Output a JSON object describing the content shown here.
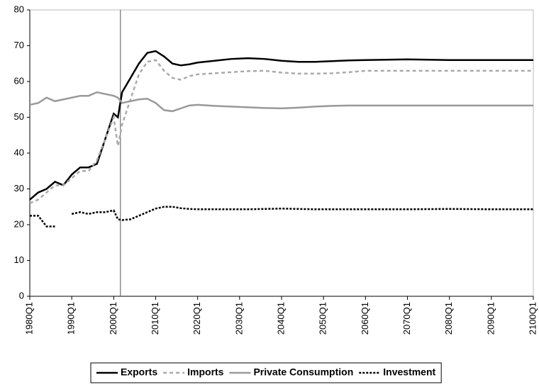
{
  "chart_data": {
    "type": "line",
    "x": [
      1980,
      1982,
      1984,
      1986,
      1988,
      1990,
      1992,
      1994,
      1996,
      1998,
      2000,
      2001,
      2002,
      2004,
      2006,
      2008,
      2010,
      2012,
      2014,
      2016,
      2018,
      2020,
      2024,
      2028,
      2032,
      2036,
      2040,
      2044,
      2048,
      2052,
      2056,
      2060,
      2070,
      2080,
      2090,
      2100
    ],
    "series": [
      {
        "name": "Exports",
        "color": "#000000",
        "dash": "solid",
        "values": [
          27,
          29,
          30,
          32,
          31,
          34,
          36,
          36,
          37,
          44,
          51,
          50,
          57,
          61,
          65,
          68,
          68.5,
          67,
          65,
          64.5,
          64.8,
          65.3,
          65.8,
          66.3,
          66.5,
          66.3,
          65.8,
          65.5,
          65.5,
          65.7,
          65.9,
          66,
          66.2,
          66,
          66,
          66
        ]
      },
      {
        "name": "Imports",
        "color": "#aaaaaa",
        "dash": "dashed",
        "values": [
          26,
          27,
          29,
          31,
          31,
          33,
          35,
          35,
          38,
          44,
          50,
          42,
          48,
          55,
          62,
          65.5,
          66,
          63,
          61,
          60.5,
          61.5,
          62,
          62.3,
          62.6,
          62.9,
          63,
          62.5,
          62.2,
          62.2,
          62.3,
          62.6,
          63,
          63,
          63,
          63,
          63
        ]
      },
      {
        "name": "Private Consumption",
        "color": "#999999",
        "dash": "solid",
        "values": [
          53.5,
          54,
          55.5,
          54.5,
          55,
          55.5,
          56,
          56,
          57,
          56.5,
          56,
          55.5,
          54,
          54.5,
          55,
          55.2,
          54,
          52,
          51.7,
          52.5,
          53.3,
          53.5,
          53.2,
          53,
          52.8,
          52.6,
          52.5,
          52.7,
          53,
          53.2,
          53.3,
          53.3,
          53.3,
          53.3,
          53.3,
          53.3
        ]
      },
      {
        "name": "Investment",
        "color": "#000000",
        "dash": "dotted",
        "values": [
          22.5,
          22.5,
          19.5,
          19.5,
          null,
          23,
          23.5,
          23,
          23.5,
          23.5,
          24,
          21.5,
          21.3,
          21.5,
          22.5,
          23.5,
          24.5,
          25,
          25,
          24.6,
          24.4,
          24.3,
          24.3,
          24.3,
          24.3,
          24.4,
          24.5,
          24.4,
          24.3,
          24.3,
          24.3,
          24.3,
          24.3,
          24.4,
          24.3,
          24.3
        ]
      }
    ],
    "xlim": [
      1980,
      2100
    ],
    "xticks": [
      {
        "value": 1980,
        "label": "1980Q1"
      },
      {
        "value": 1990,
        "label": "1990Q1"
      },
      {
        "value": 2000,
        "label": "2000Q1"
      },
      {
        "value": 2010,
        "label": "2010Q1"
      },
      {
        "value": 2020,
        "label": "2020Q1"
      },
      {
        "value": 2030,
        "label": "2030Q1"
      },
      {
        "value": 2040,
        "label": "2040Q1"
      },
      {
        "value": 2050,
        "label": "2050Q1"
      },
      {
        "value": 2060,
        "label": "2060Q1"
      },
      {
        "value": 2070,
        "label": "2070Q1"
      },
      {
        "value": 2080,
        "label": "2080Q1"
      },
      {
        "value": 2090,
        "label": "2090Q1"
      },
      {
        "value": 2100,
        "label": "2100Q1"
      }
    ],
    "ylim": [
      0,
      80
    ],
    "yticks": [
      0,
      10,
      20,
      30,
      40,
      50,
      60,
      70,
      80
    ],
    "vline": 2001.6,
    "grid": false,
    "legend": "bottom"
  }
}
